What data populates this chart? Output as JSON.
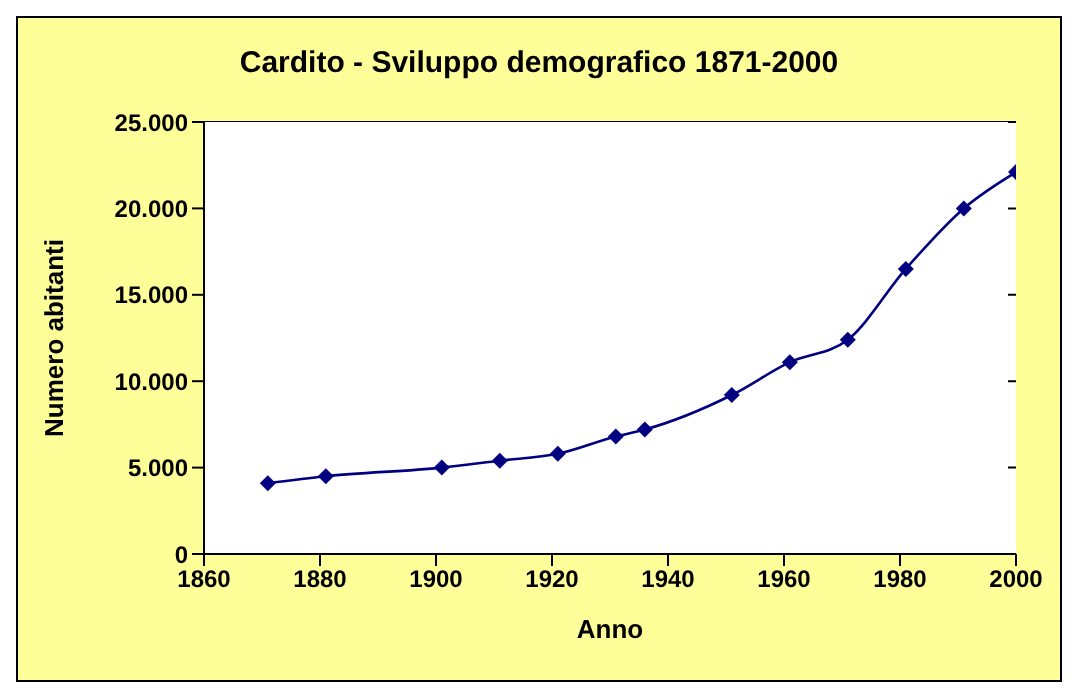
{
  "chart_data": {
    "type": "line",
    "title": "Cardito - Sviluppo demografico 1871-2000",
    "xlabel": "Anno",
    "ylabel": "Numero abitanti",
    "x": [
      1871,
      1881,
      1901,
      1911,
      1921,
      1931,
      1936,
      1951,
      1961,
      1971,
      1981,
      1991,
      2000
    ],
    "series": [
      {
        "color": "#000080",
        "values": [
          4100,
          4500,
          5000,
          5400,
          5800,
          6800,
          7200,
          9200,
          11100,
          12400,
          16500,
          20000,
          22100
        ]
      }
    ],
    "xlim": [
      1860,
      2000
    ],
    "xticks": [
      1860,
      1880,
      1900,
      1920,
      1940,
      1960,
      1980,
      2000
    ],
    "ylim": [
      0,
      25000
    ],
    "yticks": [
      {
        "value": 0,
        "label": "0"
      },
      {
        "value": 5000,
        "label": "5.000"
      },
      {
        "value": 10000,
        "label": "10.000"
      },
      {
        "value": 15000,
        "label": "15.000"
      },
      {
        "value": 20000,
        "label": "20.000"
      },
      {
        "value": 25000,
        "label": "25.000"
      }
    ],
    "grid": "y",
    "marker": "diamond",
    "line_style": "solid"
  }
}
